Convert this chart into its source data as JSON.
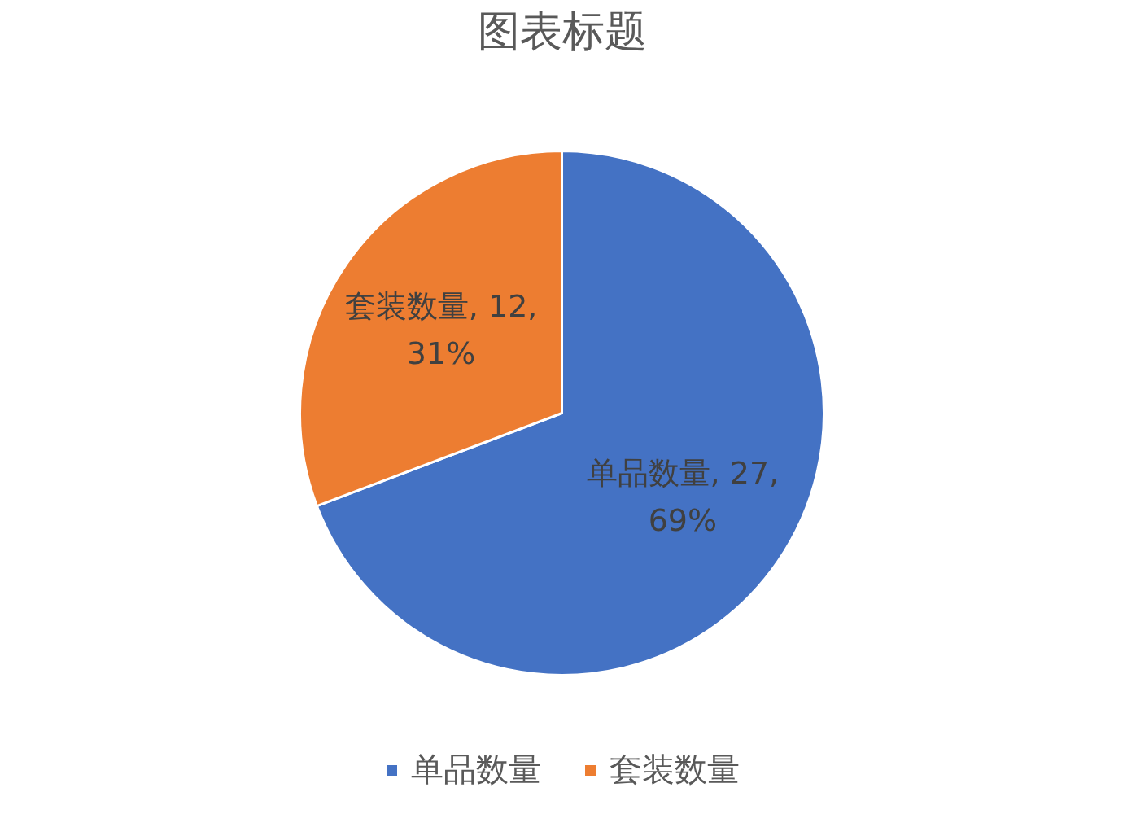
{
  "chart_data": {
    "type": "pie",
    "title": "图表标题",
    "categories": [
      "单品数量",
      "套装数量"
    ],
    "values": [
      27,
      12
    ],
    "colors": [
      "#4472c4",
      "#ed7d31"
    ],
    "value_labels": [
      "单品数量, 27,\n69%",
      "套装数量, 12,\n31%"
    ],
    "legend": "bottom"
  }
}
